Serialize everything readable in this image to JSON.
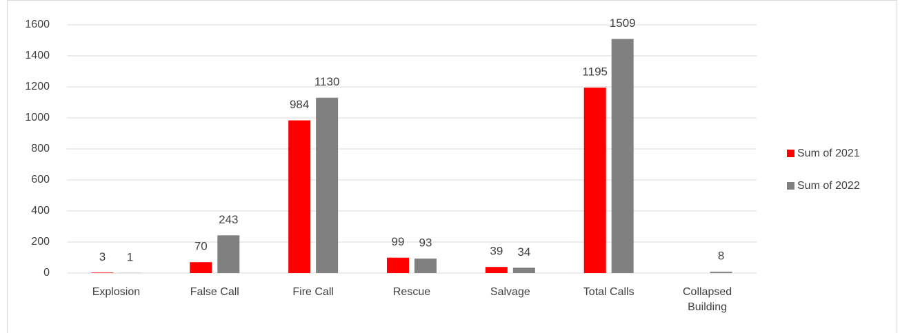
{
  "chart_data": {
    "type": "bar",
    "categories": [
      "Explosion",
      "False Call",
      "Fire Call",
      "Rescue",
      "Salvage",
      "Total Calls",
      "Collapsed Building"
    ],
    "series": [
      {
        "name": "Sum of 2021",
        "color": "#ff0000",
        "values": [
          3,
          70,
          984,
          99,
          39,
          1195,
          null
        ]
      },
      {
        "name": "Sum of 2022",
        "color": "#808080",
        "values": [
          1,
          243,
          1130,
          93,
          34,
          1509,
          8
        ]
      }
    ],
    "ylim": [
      0,
      1600
    ],
    "yticks": [
      0,
      200,
      400,
      600,
      800,
      1000,
      1200,
      1400,
      1600
    ],
    "grid": true,
    "legend": "right"
  }
}
